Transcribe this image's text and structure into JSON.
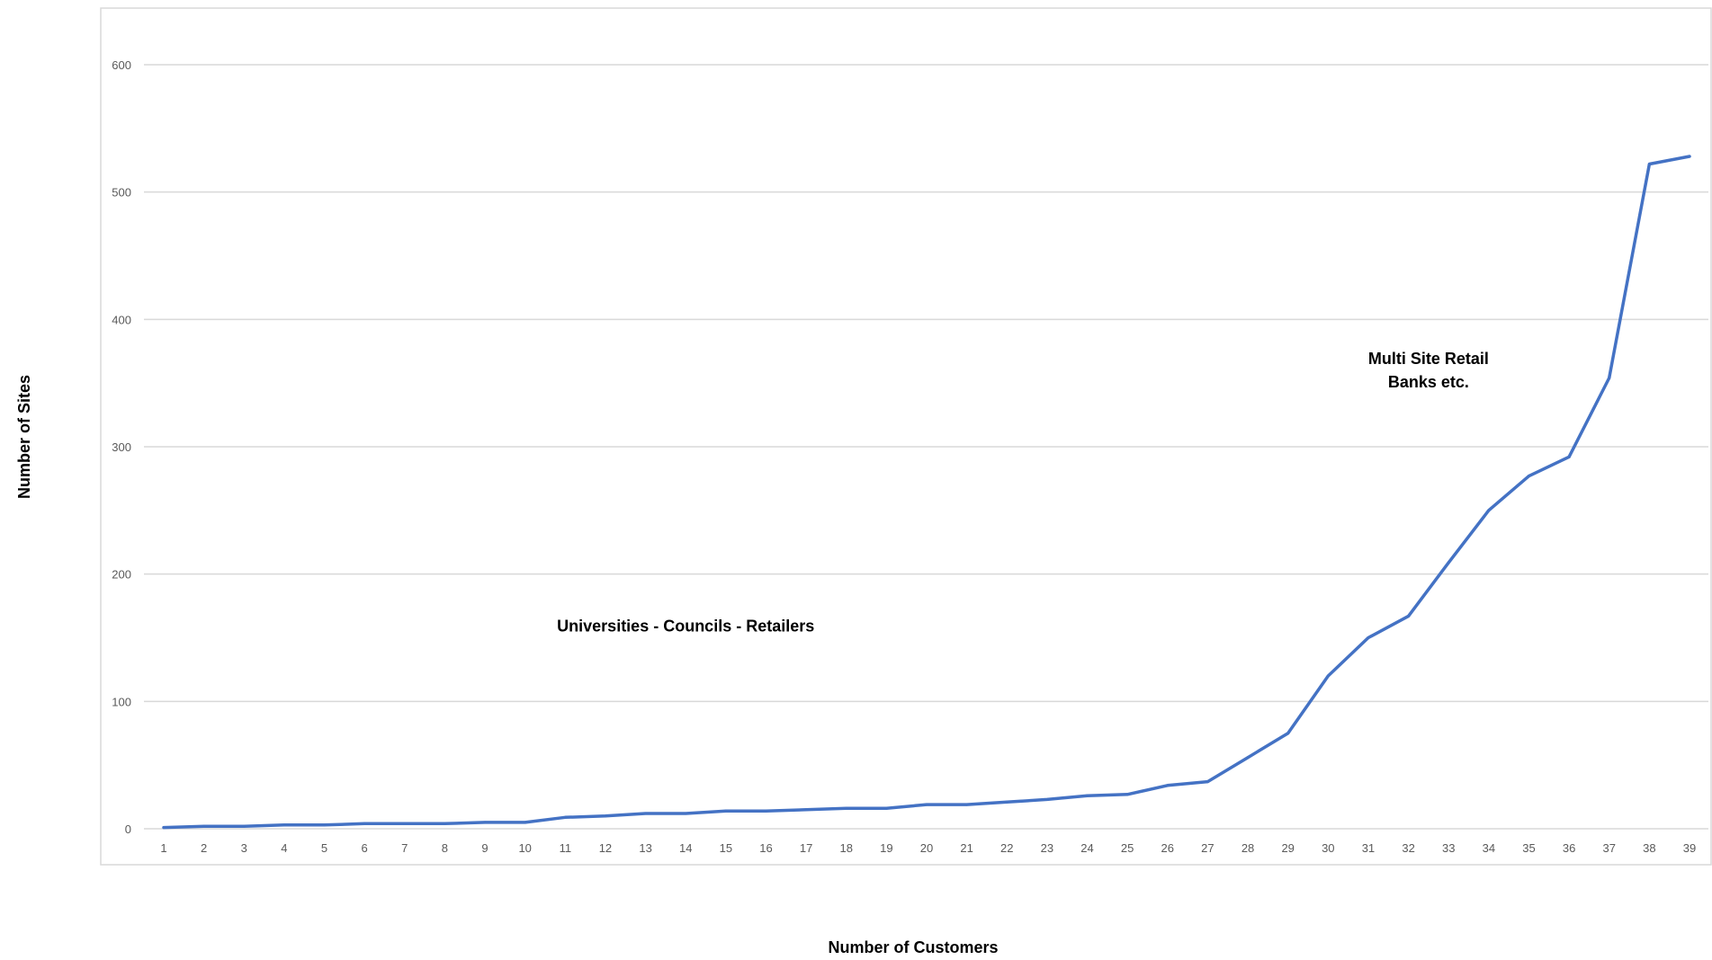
{
  "chart_data": {
    "type": "line",
    "title": "",
    "xlabel": "Number of Customers",
    "ylabel": "Number of Sites",
    "x": [
      1,
      2,
      3,
      4,
      5,
      6,
      7,
      8,
      9,
      10,
      11,
      12,
      13,
      14,
      15,
      16,
      17,
      18,
      19,
      20,
      21,
      22,
      23,
      24,
      25,
      26,
      27,
      28,
      29,
      30,
      31,
      32,
      33,
      34,
      35,
      36,
      37,
      38,
      39
    ],
    "series": [
      {
        "values": [
          1,
          2,
          2,
          3,
          3,
          4,
          4,
          4,
          5,
          5,
          9,
          10,
          12,
          12,
          14,
          14,
          15,
          16,
          16,
          19,
          19,
          21,
          23,
          26,
          27,
          34,
          37,
          56,
          75,
          120,
          150,
          167,
          209,
          250,
          277,
          292,
          354,
          522,
          528
        ],
        "color": "#4472c4"
      }
    ],
    "ylim": [
      0,
      600
    ],
    "yticks": [
      0,
      100,
      200,
      300,
      400,
      500,
      600
    ],
    "grid": true,
    "legend": "none",
    "annotations": [
      {
        "lines": [
          "Universities - Councils - Retailers"
        ],
        "x": 14,
        "y": 155
      },
      {
        "lines": [
          "Multi Site Retail",
          "Banks etc."
        ],
        "x": 32.5,
        "y": 365
      }
    ],
    "colors": {
      "line": "#4472c4",
      "grid": "#d9d9d9",
      "border": "#d9d9d9",
      "tick_text": "#595959"
    }
  }
}
